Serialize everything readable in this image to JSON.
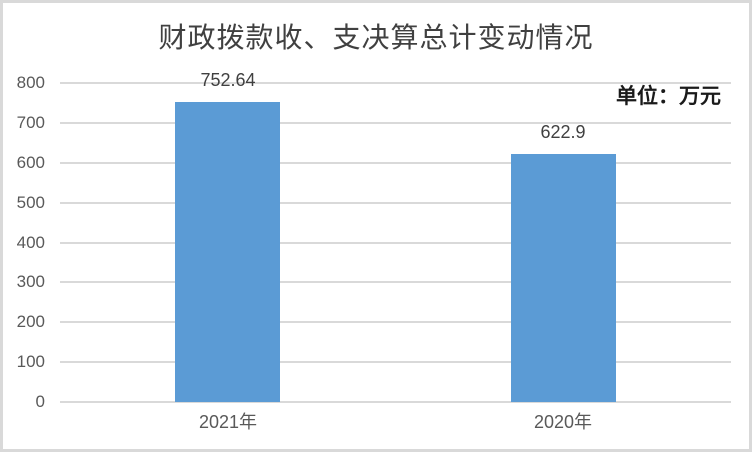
{
  "chart_data": {
    "type": "bar",
    "title": "财政拨款收、支决算总计变动情况",
    "unit_label": "单位：万元",
    "categories": [
      "2021年",
      "2020年"
    ],
    "values": [
      752.64,
      622.9
    ],
    "value_labels": [
      "752.64",
      "622.9"
    ],
    "ylim": [
      0,
      800
    ],
    "yticks": [
      0,
      100,
      200,
      300,
      400,
      500,
      600,
      700,
      800
    ],
    "ytick_labels": [
      "0",
      "100",
      "200",
      "300",
      "400",
      "500",
      "600",
      "700",
      "800"
    ],
    "grid": true,
    "legend_position": "none",
    "colors": {
      "bar": "#5b9bd5",
      "gridline": "#d9d9d9",
      "border": "#d9d9d9",
      "background": "#ffffff",
      "title_text": "#404040",
      "axis_text": "#595959",
      "value_text": "#404040",
      "unit_text": "#1a1a1a"
    }
  }
}
